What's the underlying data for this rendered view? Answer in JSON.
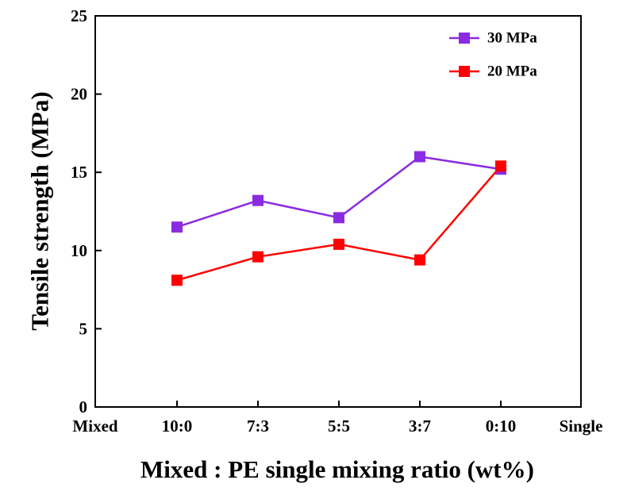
{
  "chart_data": {
    "type": "line",
    "title": "",
    "xlabel": "Mixed : PE single mixing ratio (wt%)",
    "ylabel": "Tensile strength (MPa)",
    "categories": [
      "Mixed",
      "10:0",
      "7:3",
      "5:5",
      "3:7",
      "0:10",
      "Single"
    ],
    "ylim": [
      0,
      25
    ],
    "yticks": [
      0,
      5,
      10,
      15,
      20,
      25
    ],
    "grid": false,
    "legend_position": "top-right",
    "series": [
      {
        "name": "30 MPa",
        "color": "#8a2be2",
        "marker": "square",
        "x": [
          "10:0",
          "7:3",
          "5:5",
          "3:7",
          "0:10"
        ],
        "values": [
          11.5,
          13.2,
          12.1,
          16.0,
          15.2
        ]
      },
      {
        "name": "20 MPa",
        "color": "#ff0000",
        "marker": "square",
        "x": [
          "10:0",
          "7:3",
          "5:5",
          "3:7",
          "0:10"
        ],
        "values": [
          8.1,
          9.6,
          10.4,
          9.4,
          15.4
        ]
      }
    ]
  }
}
